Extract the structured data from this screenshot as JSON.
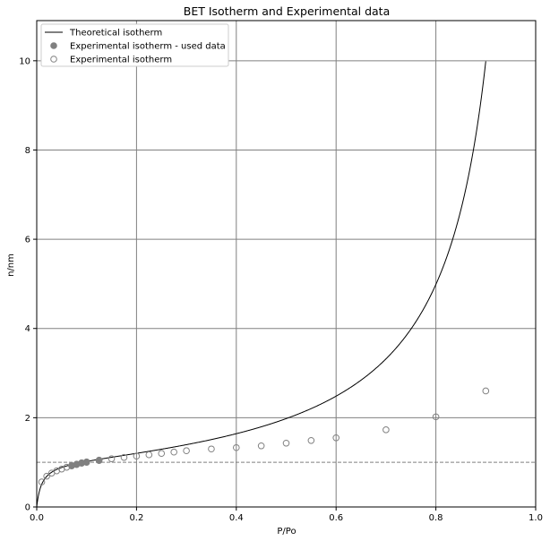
{
  "chart_data": {
    "type": "line",
    "title": "BET Isotherm and Experimental data",
    "xlabel": "P/Po",
    "ylabel": "n/nm",
    "xlim": [
      0,
      1
    ],
    "ylim": [
      0,
      10.9
    ],
    "xticks": [
      "0.0",
      "0.2",
      "0.4",
      "0.6",
      "0.8",
      "1.0"
    ],
    "xtick_values": [
      0,
      0.2,
      0.4,
      0.6,
      0.8,
      1.0
    ],
    "yticks": [
      "0",
      "2",
      "4",
      "6",
      "8",
      "10"
    ],
    "ytick_values": [
      0,
      2,
      4,
      6,
      8,
      10
    ],
    "grid": true,
    "legend_position": "top-left",
    "reference_line": {
      "y": 1,
      "style": "dashed",
      "color": "#808080"
    },
    "series": [
      {
        "name": "Theoretical isotherm",
        "kind": "line",
        "color": "#000000",
        "bet_constant_c": 100,
        "x_range": [
          0,
          0.9
        ]
      },
      {
        "name": "Experimental isotherm - used data",
        "kind": "scatter-filled",
        "color": "#808080",
        "x": [
          0.07,
          0.08,
          0.09,
          0.1,
          0.125
        ],
        "y": [
          0.93,
          0.96,
          0.99,
          1.01,
          1.05
        ]
      },
      {
        "name": "Experimental isotherm",
        "kind": "scatter-open",
        "color": "#808080",
        "x": [
          0.01,
          0.02,
          0.03,
          0.04,
          0.05,
          0.06,
          0.07,
          0.08,
          0.09,
          0.1,
          0.125,
          0.15,
          0.175,
          0.2,
          0.225,
          0.25,
          0.275,
          0.3,
          0.35,
          0.4,
          0.45,
          0.5,
          0.55,
          0.6,
          0.7,
          0.8,
          0.9
        ],
        "y": [
          0.56,
          0.69,
          0.76,
          0.81,
          0.85,
          0.89,
          0.92,
          0.95,
          0.98,
          1.0,
          1.04,
          1.08,
          1.11,
          1.14,
          1.17,
          1.2,
          1.23,
          1.26,
          1.3,
          1.33,
          1.37,
          1.43,
          1.49,
          1.55,
          1.73,
          2.02,
          2.6
        ]
      }
    ]
  }
}
